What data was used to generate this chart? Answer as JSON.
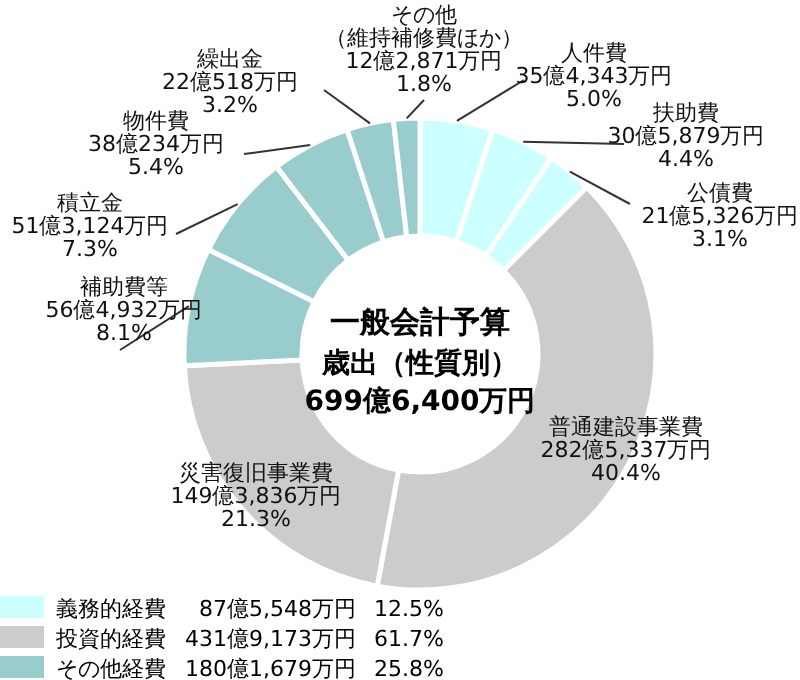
{
  "chart_data": {
    "type": "donut",
    "title": "一般会計予算",
    "subtitle": "歳出（性質別）\n699億6,400万円",
    "categories": [
      "人件費",
      "扶助費",
      "公債費",
      "普通建設事業費",
      "災害復旧事業費",
      "補助費等",
      "積立金",
      "物件費",
      "繰出金",
      "その他（維持補修費ほか）"
    ],
    "values": [
      5.0,
      4.4,
      3.1,
      40.4,
      21.3,
      8.1,
      7.3,
      5.4,
      3.2,
      1.8
    ],
    "value_labels": [
      "35億4,343万円\n5.0%",
      "30億5,879万円\n4.4%",
      "21億5,326万円\n3.1%",
      "282億5,337万円\n40.4%",
      "149億3,836万円\n21.3%",
      "56億4,932万円\n8.1%",
      "51億3,124万円\n7.3%",
      "38億234万円\n5.4%",
      "22億518万円\n3.2%",
      "12億2,871万円\n1.8%"
    ],
    "colors": [
      "#ccffff",
      "#ccffff",
      "#ccffff",
      "#cccccc",
      "#cccccc",
      "#99cccc",
      "#99cccc",
      "#99cccc",
      "#99cccc",
      "#99cccc"
    ],
    "annotations": [
      "義務的経費",
      "87億5,548万円",
      "12.5%",
      "投資的経費",
      "431億9,173万円",
      "61.7%",
      "その他経費",
      "180億1,679万円",
      "25.8%"
    ]
  }
}
